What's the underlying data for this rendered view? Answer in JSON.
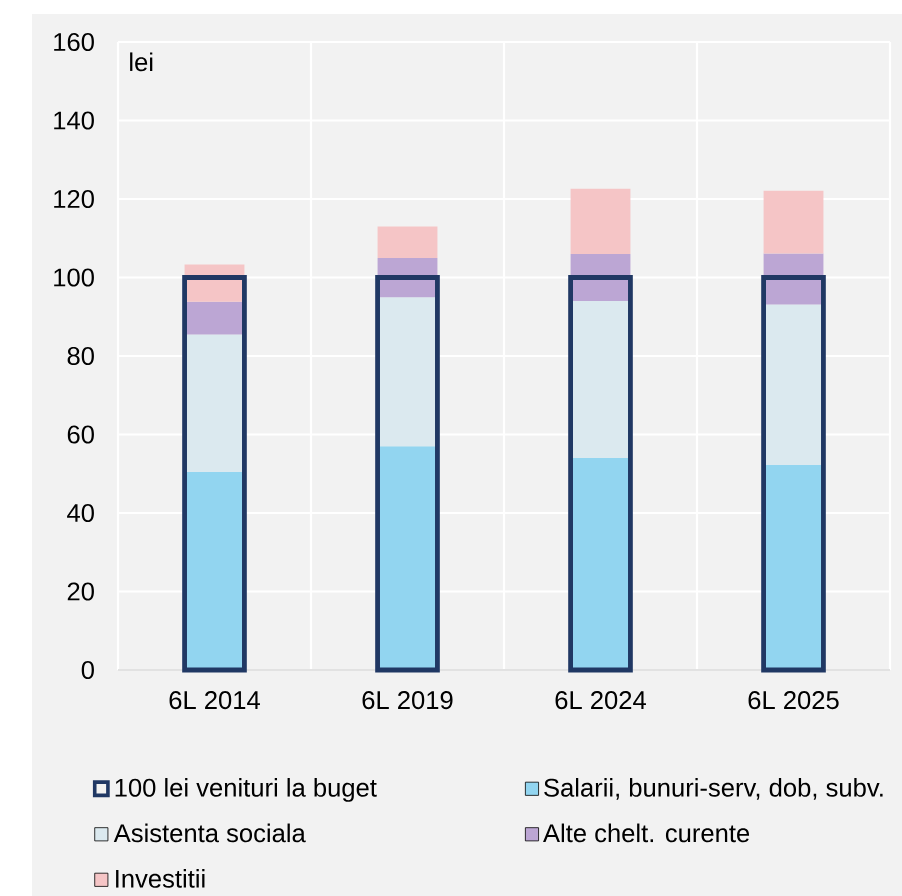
{
  "chart_data": {
    "type": "bar",
    "ylabel": "lei",
    "categories": [
      "6L 2014",
      "6L 2019",
      "6L 2024",
      "6L 2025"
    ],
    "series": [
      {
        "name": "100 lei venituri la buget",
        "color": "#203864",
        "values": [
          100,
          100,
          100,
          100
        ],
        "base": [
          0,
          0,
          0,
          0
        ]
      },
      {
        "name": "Salarii, bunuri-serv, dob, subv.",
        "color": "#92d5f0",
        "values": [
          50.5,
          57,
          54,
          52.3
        ],
        "base": [
          0,
          0,
          0,
          0
        ]
      },
      {
        "name": "Asistenta sociala",
        "color": "#dbe9ef",
        "values": [
          35,
          38,
          40,
          40.8
        ],
        "base": [
          50.5,
          57,
          54,
          52.3
        ]
      },
      {
        "name": "Alte chelt. curente",
        "color": "#bca6d4",
        "values": [
          8.3,
          10,
          12,
          13
        ],
        "base": [
          85.5,
          95,
          94,
          93.1
        ]
      },
      {
        "name": "Investitii",
        "color": "#f5c5c6",
        "values": [
          9.5,
          8,
          16.6,
          16
        ],
        "base": [
          93.8,
          105,
          106,
          106.1
        ]
      }
    ],
    "ylim": [
      0,
      160
    ],
    "yticks": [
      0,
      20,
      40,
      60,
      80,
      100,
      120,
      140,
      160
    ],
    "grid": true,
    "legend": "bottom"
  }
}
